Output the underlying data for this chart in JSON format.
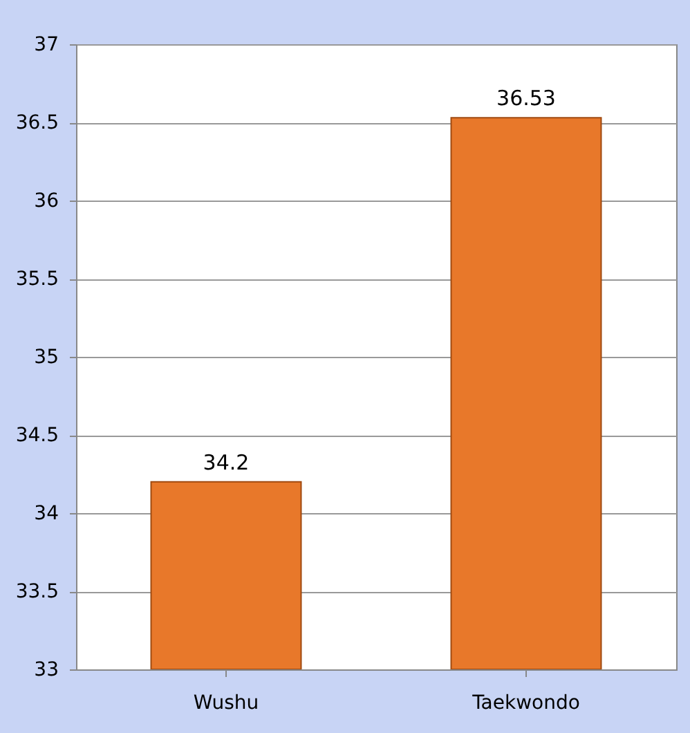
{
  "chart_data": {
    "type": "bar",
    "categories": [
      "Wushu",
      "Taekwondo"
    ],
    "values": [
      34.2,
      36.53
    ],
    "color": "#e8782a",
    "ylim": [
      33,
      37
    ],
    "yticks": [
      33,
      33.5,
      34,
      34.5,
      35,
      35.5,
      36,
      36.5,
      37
    ],
    "grid": "y",
    "data_labels": true
  }
}
